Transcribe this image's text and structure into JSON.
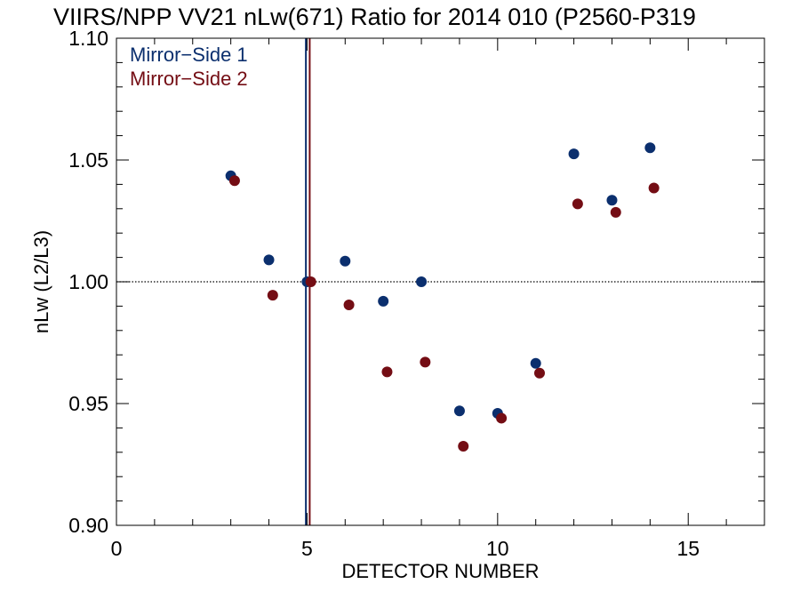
{
  "chart_data": {
    "type": "scatter",
    "title": "VIIRS/NPP VV21 nLw(671) Ratio for 2014 010 (P2560-P319",
    "xlabel": "DETECTOR NUMBER",
    "ylabel": "nLw (L2/L3)",
    "xlim": [
      0,
      17
    ],
    "ylim": [
      0.9,
      1.1
    ],
    "x_ticks": [
      0,
      5,
      10,
      15
    ],
    "x_tick_labels": [
      "0",
      "5",
      "10",
      "15"
    ],
    "y_ticks": [
      0.9,
      0.95,
      1.0,
      1.05,
      1.1
    ],
    "y_tick_labels": [
      "0.90",
      "0.95",
      "1.00",
      "1.05",
      "1.10"
    ],
    "reference_line_y": 1.0,
    "legend_position": "top-left",
    "series": [
      {
        "name": "Mirror−Side 1",
        "color": "#0b2f6e",
        "x": [
          3,
          4,
          5,
          6,
          7,
          8,
          9,
          10,
          11,
          12,
          13,
          14
        ],
        "values": [
          1.0435,
          1.009,
          1.0,
          1.0085,
          0.992,
          1.0,
          0.947,
          0.946,
          0.9665,
          1.0525,
          1.0335,
          1.055
        ],
        "vline_x": 4.97
      },
      {
        "name": "Mirror−Side 2",
        "color": "#740d14",
        "x": [
          3.1,
          4.1,
          5.1,
          6.1,
          7.1,
          8.1,
          9.1,
          10.1,
          11.1,
          12.1,
          13.1,
          14.1
        ],
        "values": [
          1.0415,
          0.9945,
          1.0,
          0.9905,
          0.963,
          0.967,
          0.9325,
          0.944,
          0.9625,
          1.032,
          1.0285,
          1.0385
        ],
        "vline_x": 5.07
      }
    ]
  }
}
